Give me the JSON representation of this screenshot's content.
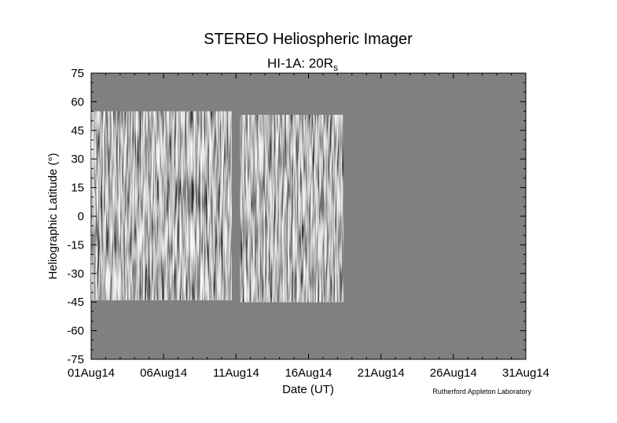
{
  "chart_data": {
    "type": "heatmap",
    "title": "STEREO Heliospheric Imager",
    "subtitle_main": "HI-1A: 20R",
    "subtitle_sub": "s",
    "xlabel": "Date (UT)",
    "ylabel": "Heliographic Latitude (°)",
    "credit": "Rutherford Appleton Laboratory",
    "x_ticks": [
      "01Aug14",
      "06Aug14",
      "11Aug14",
      "16Aug14",
      "21Aug14",
      "26Aug14",
      "31Aug14"
    ],
    "y_ticks": [
      "75",
      "60",
      "45",
      "30",
      "15",
      "0",
      "-15",
      "-30",
      "-45",
      "-60",
      "-75"
    ],
    "xlim_days": [
      0,
      30
    ],
    "ylim": [
      -75,
      75
    ],
    "background_color": "#808080",
    "data_segments": [
      {
        "x_start_days": 0.0,
        "x_end_days": 9.7,
        "lat_top": 55,
        "lat_bottom": -44
      },
      {
        "x_start_days": 10.3,
        "x_end_days": 17.4,
        "lat_top": 53,
        "lat_bottom": -45
      }
    ]
  }
}
